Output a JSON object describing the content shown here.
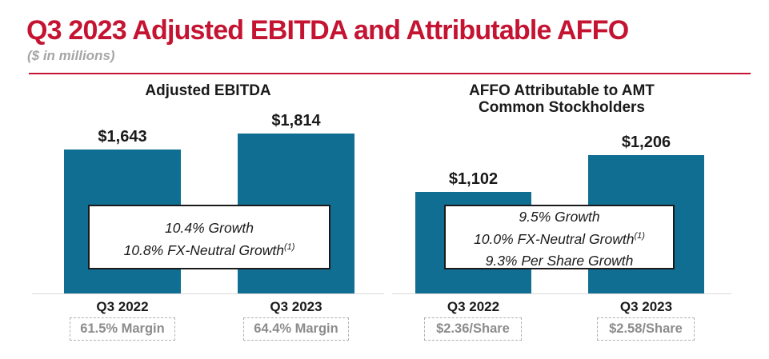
{
  "header": {
    "title": "Q3 2023 Adjusted EBITDA and Attributable AFFO",
    "subtitle": "($ in millions)"
  },
  "colors": {
    "accent_red": "#C41432",
    "bar_teal": "#106E93",
    "muted_gray": "#A6A6A6",
    "badge_gray": "#8C8C8C",
    "axis_gray": "#D9D9D9",
    "text_black": "#1A1A1A"
  },
  "chart_data": [
    {
      "type": "bar",
      "title": "Adjusted EBITDA",
      "categories": [
        "Q3 2022",
        "Q3 2023"
      ],
      "values": [
        1643,
        1814
      ],
      "value_labels": [
        "$1,643",
        "$1,814"
      ],
      "callout_lines": [
        {
          "text": "10.4% Growth",
          "sup": ""
        },
        {
          "text": "10.8% FX-Neutral Growth",
          "sup": "(1)"
        }
      ],
      "footer_badges": [
        "61.5% Margin",
        "64.4% Margin"
      ],
      "ylim": [
        500,
        1950
      ],
      "grid": false,
      "legend": "none",
      "bar_color": "#106E93"
    },
    {
      "type": "bar",
      "title": "AFFO Attributable to AMT\nCommon Stockholders",
      "categories": [
        "Q3 2022",
        "Q3 2023"
      ],
      "values": [
        1102,
        1206
      ],
      "value_labels": [
        "$1,102",
        "$1,206"
      ],
      "callout_lines": [
        {
          "text": "9.5% Growth",
          "sup": ""
        },
        {
          "text": "10.0% FX-Neutral Growth",
          "sup": "(1)"
        },
        {
          "text": "9.3% Per Share Growth",
          "sup": ""
        }
      ],
      "footer_badges": [
        "$2.36/Share",
        "$2.58/Share"
      ],
      "ylim": [
        815,
        1330
      ],
      "grid": false,
      "legend": "none",
      "bar_color": "#106E93"
    }
  ]
}
